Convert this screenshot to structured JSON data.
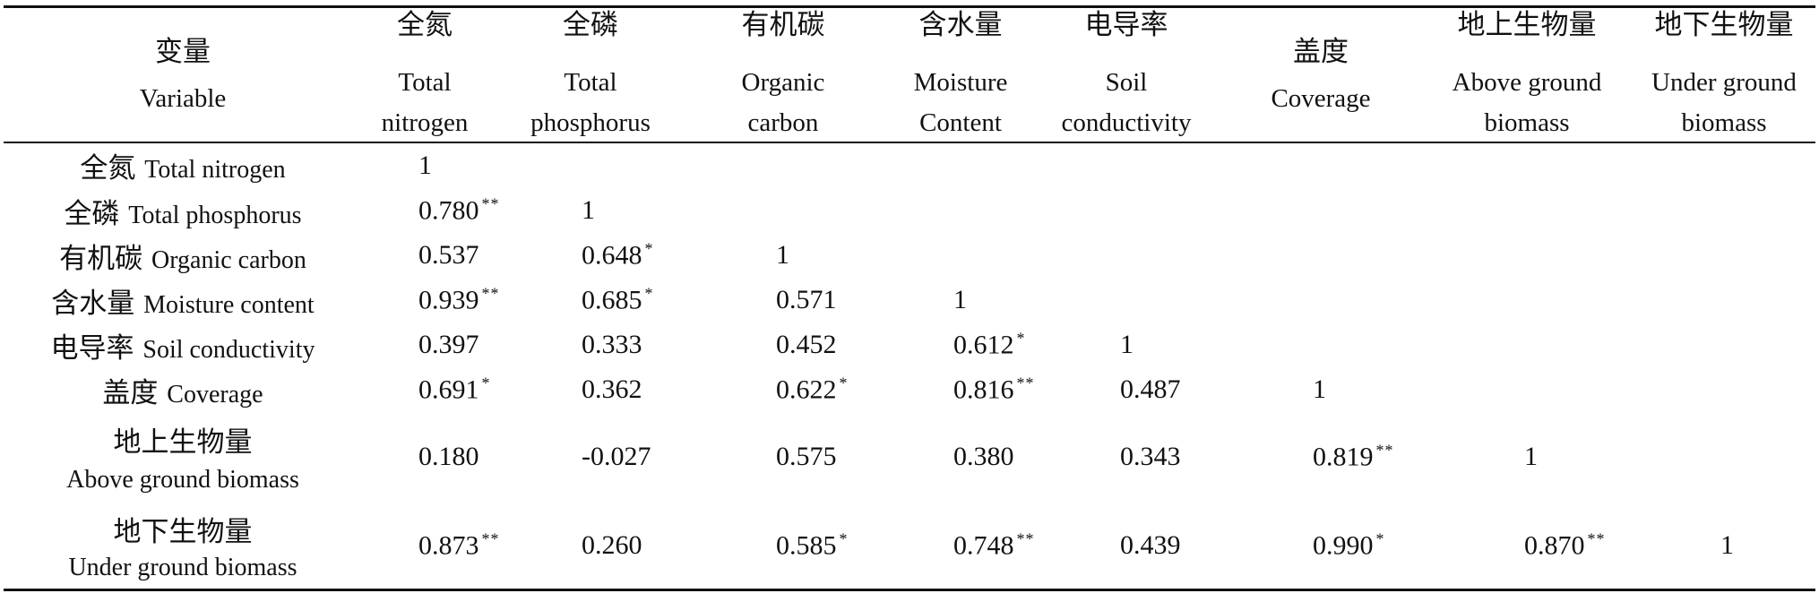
{
  "columns": [
    {
      "zh": "变量",
      "en": [
        "Variable"
      ]
    },
    {
      "zh": "全氮",
      "en": [
        "Total",
        "nitrogen"
      ]
    },
    {
      "zh": "全磷",
      "en": [
        "Total",
        "phosphorus"
      ]
    },
    {
      "zh": "有机碳",
      "en": [
        "Organic",
        "carbon"
      ]
    },
    {
      "zh": "含水量",
      "en": [
        "Moisture",
        "Content"
      ]
    },
    {
      "zh": "电导率",
      "en": [
        "Soil",
        "conductivity"
      ]
    },
    {
      "zh": "盖度",
      "en": [
        "Coverage"
      ]
    },
    {
      "zh": "地上生物量",
      "en": [
        "Above ground",
        "biomass"
      ]
    },
    {
      "zh": "地下生物量",
      "en": [
        "Under ground",
        "biomass"
      ]
    }
  ],
  "rows": [
    {
      "zh": "全氮",
      "en": "Total nitrogen",
      "cells": [
        {
          "v": "1",
          "sig": ""
        }
      ]
    },
    {
      "zh": "全磷",
      "en": "Total phosphorus",
      "cells": [
        {
          "v": "0.780",
          "sig": "**"
        },
        {
          "v": "1",
          "sig": ""
        }
      ]
    },
    {
      "zh": "有机碳",
      "en": "Organic carbon",
      "cells": [
        {
          "v": "0.537",
          "sig": ""
        },
        {
          "v": "0.648",
          "sig": "*"
        },
        {
          "v": "1",
          "sig": ""
        }
      ]
    },
    {
      "zh": "含水量",
      "en": "Moisture content",
      "cells": [
        {
          "v": "0.939",
          "sig": "**"
        },
        {
          "v": "0.685",
          "sig": "*"
        },
        {
          "v": "0.571",
          "sig": ""
        },
        {
          "v": "1",
          "sig": ""
        }
      ]
    },
    {
      "zh": "电导率",
      "en": "Soil conductivity",
      "cells": [
        {
          "v": "0.397",
          "sig": ""
        },
        {
          "v": "0.333",
          "sig": ""
        },
        {
          "v": "0.452",
          "sig": ""
        },
        {
          "v": "0.612",
          "sig": "*"
        },
        {
          "v": "1",
          "sig": ""
        }
      ]
    },
    {
      "zh": "盖度",
      "en": "Coverage",
      "cells": [
        {
          "v": "0.691",
          "sig": "*"
        },
        {
          "v": "0.362",
          "sig": ""
        },
        {
          "v": "0.622",
          "sig": "*"
        },
        {
          "v": "0.816",
          "sig": "**"
        },
        {
          "v": "0.487",
          "sig": ""
        },
        {
          "v": "1",
          "sig": ""
        }
      ]
    },
    {
      "zh": "地上生物量",
      "en": "Above ground biomass",
      "cells": [
        {
          "v": "0.180",
          "sig": ""
        },
        {
          "v": "-0.027",
          "sig": ""
        },
        {
          "v": "0.575",
          "sig": ""
        },
        {
          "v": "0.380",
          "sig": ""
        },
        {
          "v": "0.343",
          "sig": ""
        },
        {
          "v": "0.819",
          "sig": "**"
        },
        {
          "v": "1",
          "sig": ""
        }
      ]
    },
    {
      "zh": "地下生物量",
      "en": "Under ground biomass",
      "cells": [
        {
          "v": "0.873",
          "sig": "**"
        },
        {
          "v": "0.260",
          "sig": ""
        },
        {
          "v": "0.585",
          "sig": "*"
        },
        {
          "v": "0.748",
          "sig": "**"
        },
        {
          "v": "0.439",
          "sig": ""
        },
        {
          "v": "0.990",
          "sig": "*"
        },
        {
          "v": "0.870",
          "sig": "**"
        },
        {
          "v": "1",
          "sig": ""
        }
      ]
    }
  ]
}
